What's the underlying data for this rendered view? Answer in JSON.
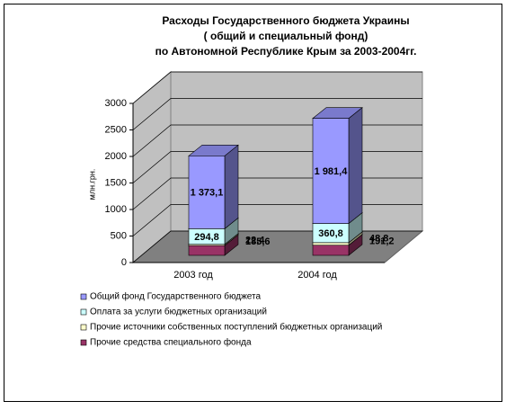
{
  "chart_data": {
    "type": "bar3d_stacked",
    "title": [
      "Расходы Государственного бюджета Украины",
      "( общий и специальный фонд)",
      "по Автономной Республике Крым за 2003-2004гг."
    ],
    "y_label": "млн.грн.",
    "categories": [
      "2003 год",
      "2004 год"
    ],
    "series": [
      {
        "name": "Общий фонд Государственного бюджета",
        "color": "#9999ff",
        "values": [
          1373.1,
          1981.4
        ],
        "value_labels": [
          "1 373,1",
          "1 981,4"
        ]
      },
      {
        "name": "Оплата за услуги бюджетных организаций",
        "color": "#ccffff",
        "values": [
          294.8,
          360.8
        ],
        "value_labels": [
          "294,8",
          "360,8"
        ]
      },
      {
        "name": "Прочие источники собственных поступлений бюджетных организаций",
        "color": "#ffffcc",
        "values": [
          22.4,
          48.8
        ],
        "value_labels": [
          "22,4",
          "48,8"
        ]
      },
      {
        "name": "Прочие средства специального фонда",
        "color": "#993366",
        "values": [
          185.6,
          191.2
        ],
        "value_labels": [
          "185,6",
          "191,2"
        ]
      }
    ],
    "ylim": [
      0,
      3000
    ],
    "yticks": [
      0,
      500,
      1000,
      1500,
      2000,
      2500,
      3000
    ],
    "grid": true
  }
}
